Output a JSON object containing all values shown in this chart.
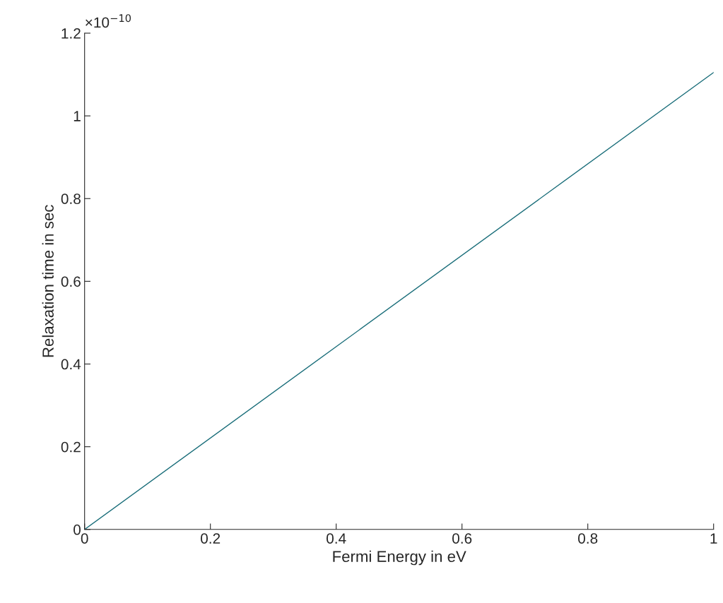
{
  "chart_data": {
    "type": "line",
    "xlabel": "Fermi Energy in eV",
    "ylabel": "Relaxation time in sec",
    "annotations": [
      "×10$^{−10}$"
    ],
    "x": [
      0,
      1
    ],
    "series": [
      {
        "color": "#1a6e7a",
        "values": [
          0,
          1.105
        ]
      }
    ],
    "xlim": [
      0,
      1
    ],
    "ylim": [
      0,
      1.2
    ],
    "xticks": [
      0,
      0.2,
      0.4,
      0.6,
      0.8,
      1
    ],
    "yticks": [
      0,
      0.2,
      0.4,
      0.6,
      0.8,
      1,
      1.2
    ],
    "grid": false,
    "legend": false,
    "marker": "none",
    "line_style": "solid"
  }
}
